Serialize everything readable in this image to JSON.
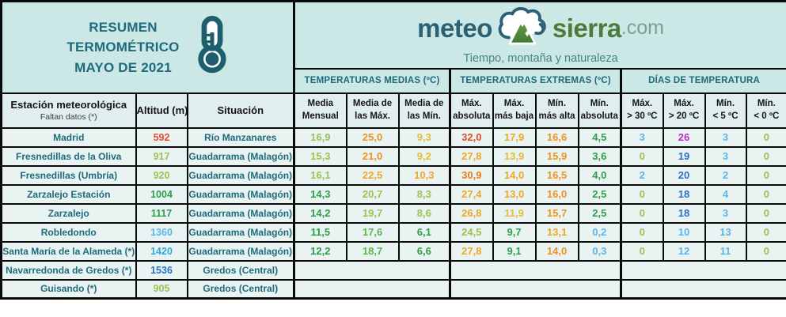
{
  "palette": {
    "lg": "#9dc153",
    "mg": "#5cb44c",
    "dg": "#2f9e48",
    "yl": "#e4bc35",
    "yo": "#eda827",
    "or": "#f0921e",
    "do": "#ee7a1b",
    "rd": "#e44d26",
    "ma": "#c42bc4",
    "bl": "#2d6fc4",
    "lb": "#5ab5e6",
    "cb": "#2fa7dc"
  },
  "colors": {
    "banner_bg": "#cbe7e6",
    "subheader_bg": "#e0efee",
    "cell_bg": "#e9f4f2",
    "teal_text": "#1d6b7c",
    "border": "#0a0a0a"
  },
  "banner": {
    "line1": "RESUMEN",
    "line2": "TERMOMÉTRICO",
    "line3": "MAYO DE 2021",
    "icon": "thermometer-icon"
  },
  "logo": {
    "word1": "meteo",
    "word2": "sierra",
    "word3": ".com",
    "tagline": "Tiempo, montaña y naturaleza",
    "icon": "cloud-mountain-icon"
  },
  "chart_data": {
    "type": "table",
    "title": "RESUMEN TERMOMÉTRICO MAYO DE 2021",
    "column_groups": {
      "medias": "TEMPERATURAS MEDIAS (ºC)",
      "extremas": "TEMPERATURAS EXTREMAS (ºC)",
      "dias": "DÍAS DE TEMPERATURA"
    },
    "headers": {
      "station_title": "Estación meteorológica",
      "station_sub": "Faltan datos (*)",
      "altitude": "Altitud (m)",
      "situation": "Situación",
      "temp_cols": [
        {
          "l1": "Media",
          "l2": "Mensual"
        },
        {
          "l1": "Media de",
          "l2": "las Máx."
        },
        {
          "l1": "Media de",
          "l2": "las Mín."
        },
        {
          "l1": "Máx.",
          "l2": "absoluta"
        },
        {
          "l1": "Máx.",
          "l2": "más baja"
        },
        {
          "l1": "Mín.",
          "l2": "más alta"
        },
        {
          "l1": "Mín.",
          "l2": "absoluta"
        },
        {
          "l1": "Máx.",
          "l2": "> 30 ºC"
        },
        {
          "l1": "Máx.",
          "l2": "> 20 ºC"
        },
        {
          "l1": "Mín.",
          "l2": "< 5 ºC"
        },
        {
          "l1": "Mín.",
          "l2": "< 0 ºC"
        }
      ]
    },
    "rows": [
      {
        "station": "Madrid",
        "altitude": "592",
        "altitude_color": "rd",
        "situation": "Río Manzanares",
        "values": [
          {
            "v": "16,9",
            "c": "lg"
          },
          {
            "v": "25,0",
            "c": "or"
          },
          {
            "v": "9,3",
            "c": "yl"
          },
          {
            "v": "32,0",
            "c": "rd"
          },
          {
            "v": "17,9",
            "c": "yo"
          },
          {
            "v": "16,6",
            "c": "or"
          },
          {
            "v": "4,5",
            "c": "dg"
          },
          {
            "v": "3",
            "c": "lb"
          },
          {
            "v": "26",
            "c": "ma"
          },
          {
            "v": "3",
            "c": "lb"
          },
          {
            "v": "0",
            "c": "lg"
          }
        ]
      },
      {
        "station": "Fresnedillas de la Oliva",
        "altitude": "917",
        "altitude_color": "lg",
        "situation": "Guadarrama (Malagón)",
        "values": [
          {
            "v": "15,3",
            "c": "lg"
          },
          {
            "v": "21,0",
            "c": "or"
          },
          {
            "v": "9,2",
            "c": "yl"
          },
          {
            "v": "27,8",
            "c": "yo"
          },
          {
            "v": "13,9",
            "c": "yl"
          },
          {
            "v": "15,9",
            "c": "or"
          },
          {
            "v": "3,6",
            "c": "dg"
          },
          {
            "v": "0",
            "c": "lg"
          },
          {
            "v": "19",
            "c": "bl"
          },
          {
            "v": "3",
            "c": "lb"
          },
          {
            "v": "0",
            "c": "lg"
          }
        ]
      },
      {
        "station": "Fresnedillas (Umbría)",
        "altitude": "920",
        "altitude_color": "lg",
        "situation": "Guadarrama (Malagón)",
        "values": [
          {
            "v": "16,1",
            "c": "lg"
          },
          {
            "v": "22,5",
            "c": "yo"
          },
          {
            "v": "10,3",
            "c": "yo"
          },
          {
            "v": "30,9",
            "c": "do"
          },
          {
            "v": "14,0",
            "c": "yo"
          },
          {
            "v": "16,5",
            "c": "or"
          },
          {
            "v": "4,0",
            "c": "dg"
          },
          {
            "v": "2",
            "c": "lb"
          },
          {
            "v": "20",
            "c": "bl"
          },
          {
            "v": "2",
            "c": "lb"
          },
          {
            "v": "0",
            "c": "lg"
          }
        ]
      },
      {
        "station": "Zarzalejo Estación",
        "altitude": "1004",
        "altitude_color": "dg",
        "situation": "Guadarrama (Malagón)",
        "values": [
          {
            "v": "14,3",
            "c": "dg"
          },
          {
            "v": "20,7",
            "c": "lg"
          },
          {
            "v": "8,3",
            "c": "lg"
          },
          {
            "v": "27,4",
            "c": "yo"
          },
          {
            "v": "13,0",
            "c": "yo"
          },
          {
            "v": "16,0",
            "c": "or"
          },
          {
            "v": "2,5",
            "c": "dg"
          },
          {
            "v": "0",
            "c": "lg"
          },
          {
            "v": "18",
            "c": "bl"
          },
          {
            "v": "4",
            "c": "lb"
          },
          {
            "v": "0",
            "c": "lg"
          }
        ]
      },
      {
        "station": "Zarzalejo",
        "altitude": "1117",
        "altitude_color": "dg",
        "situation": "Guadarrama (Malagón)",
        "values": [
          {
            "v": "14,2",
            "c": "dg"
          },
          {
            "v": "19,7",
            "c": "lg"
          },
          {
            "v": "8,6",
            "c": "lg"
          },
          {
            "v": "26,8",
            "c": "yo"
          },
          {
            "v": "11,9",
            "c": "yl"
          },
          {
            "v": "15,7",
            "c": "or"
          },
          {
            "v": "2,5",
            "c": "dg"
          },
          {
            "v": "0",
            "c": "lg"
          },
          {
            "v": "18",
            "c": "bl"
          },
          {
            "v": "3",
            "c": "lb"
          },
          {
            "v": "0",
            "c": "lg"
          }
        ]
      },
      {
        "station": "Robledondo",
        "altitude": "1360",
        "altitude_color": "lb",
        "situation": "Guadarrama (Malagón)",
        "values": [
          {
            "v": "11,5",
            "c": "dg"
          },
          {
            "v": "17,6",
            "c": "mg"
          },
          {
            "v": "6,1",
            "c": "dg"
          },
          {
            "v": "24,5",
            "c": "lg"
          },
          {
            "v": "9,7",
            "c": "dg"
          },
          {
            "v": "13,1",
            "c": "yo"
          },
          {
            "v": "0,2",
            "c": "lb"
          },
          {
            "v": "0",
            "c": "lg"
          },
          {
            "v": "10",
            "c": "lb"
          },
          {
            "v": "13",
            "c": "lb"
          },
          {
            "v": "0",
            "c": "lg"
          }
        ]
      },
      {
        "station": "Santa María de la Alameda (*)",
        "altitude": "1420",
        "altitude_color": "cb",
        "situation": "Guadarrama (Malagón)",
        "values": [
          {
            "v": "12,2",
            "c": "dg"
          },
          {
            "v": "18,7",
            "c": "mg"
          },
          {
            "v": "6,6",
            "c": "dg"
          },
          {
            "v": "27,8",
            "c": "yo"
          },
          {
            "v": "9,1",
            "c": "dg"
          },
          {
            "v": "14,0",
            "c": "or"
          },
          {
            "v": "0,3",
            "c": "lb"
          },
          {
            "v": "0",
            "c": "lg"
          },
          {
            "v": "12",
            "c": "lb"
          },
          {
            "v": "11",
            "c": "lb"
          },
          {
            "v": "0",
            "c": "lg"
          }
        ]
      },
      {
        "station": "Navarredonda de Gredos (*)",
        "altitude": "1536",
        "altitude_color": "bl",
        "situation": "Gredos (Central)",
        "values": []
      },
      {
        "station": "Guisando (*)",
        "altitude": "905",
        "altitude_color": "lg",
        "situation": "Gredos (Central)",
        "values": []
      }
    ]
  }
}
